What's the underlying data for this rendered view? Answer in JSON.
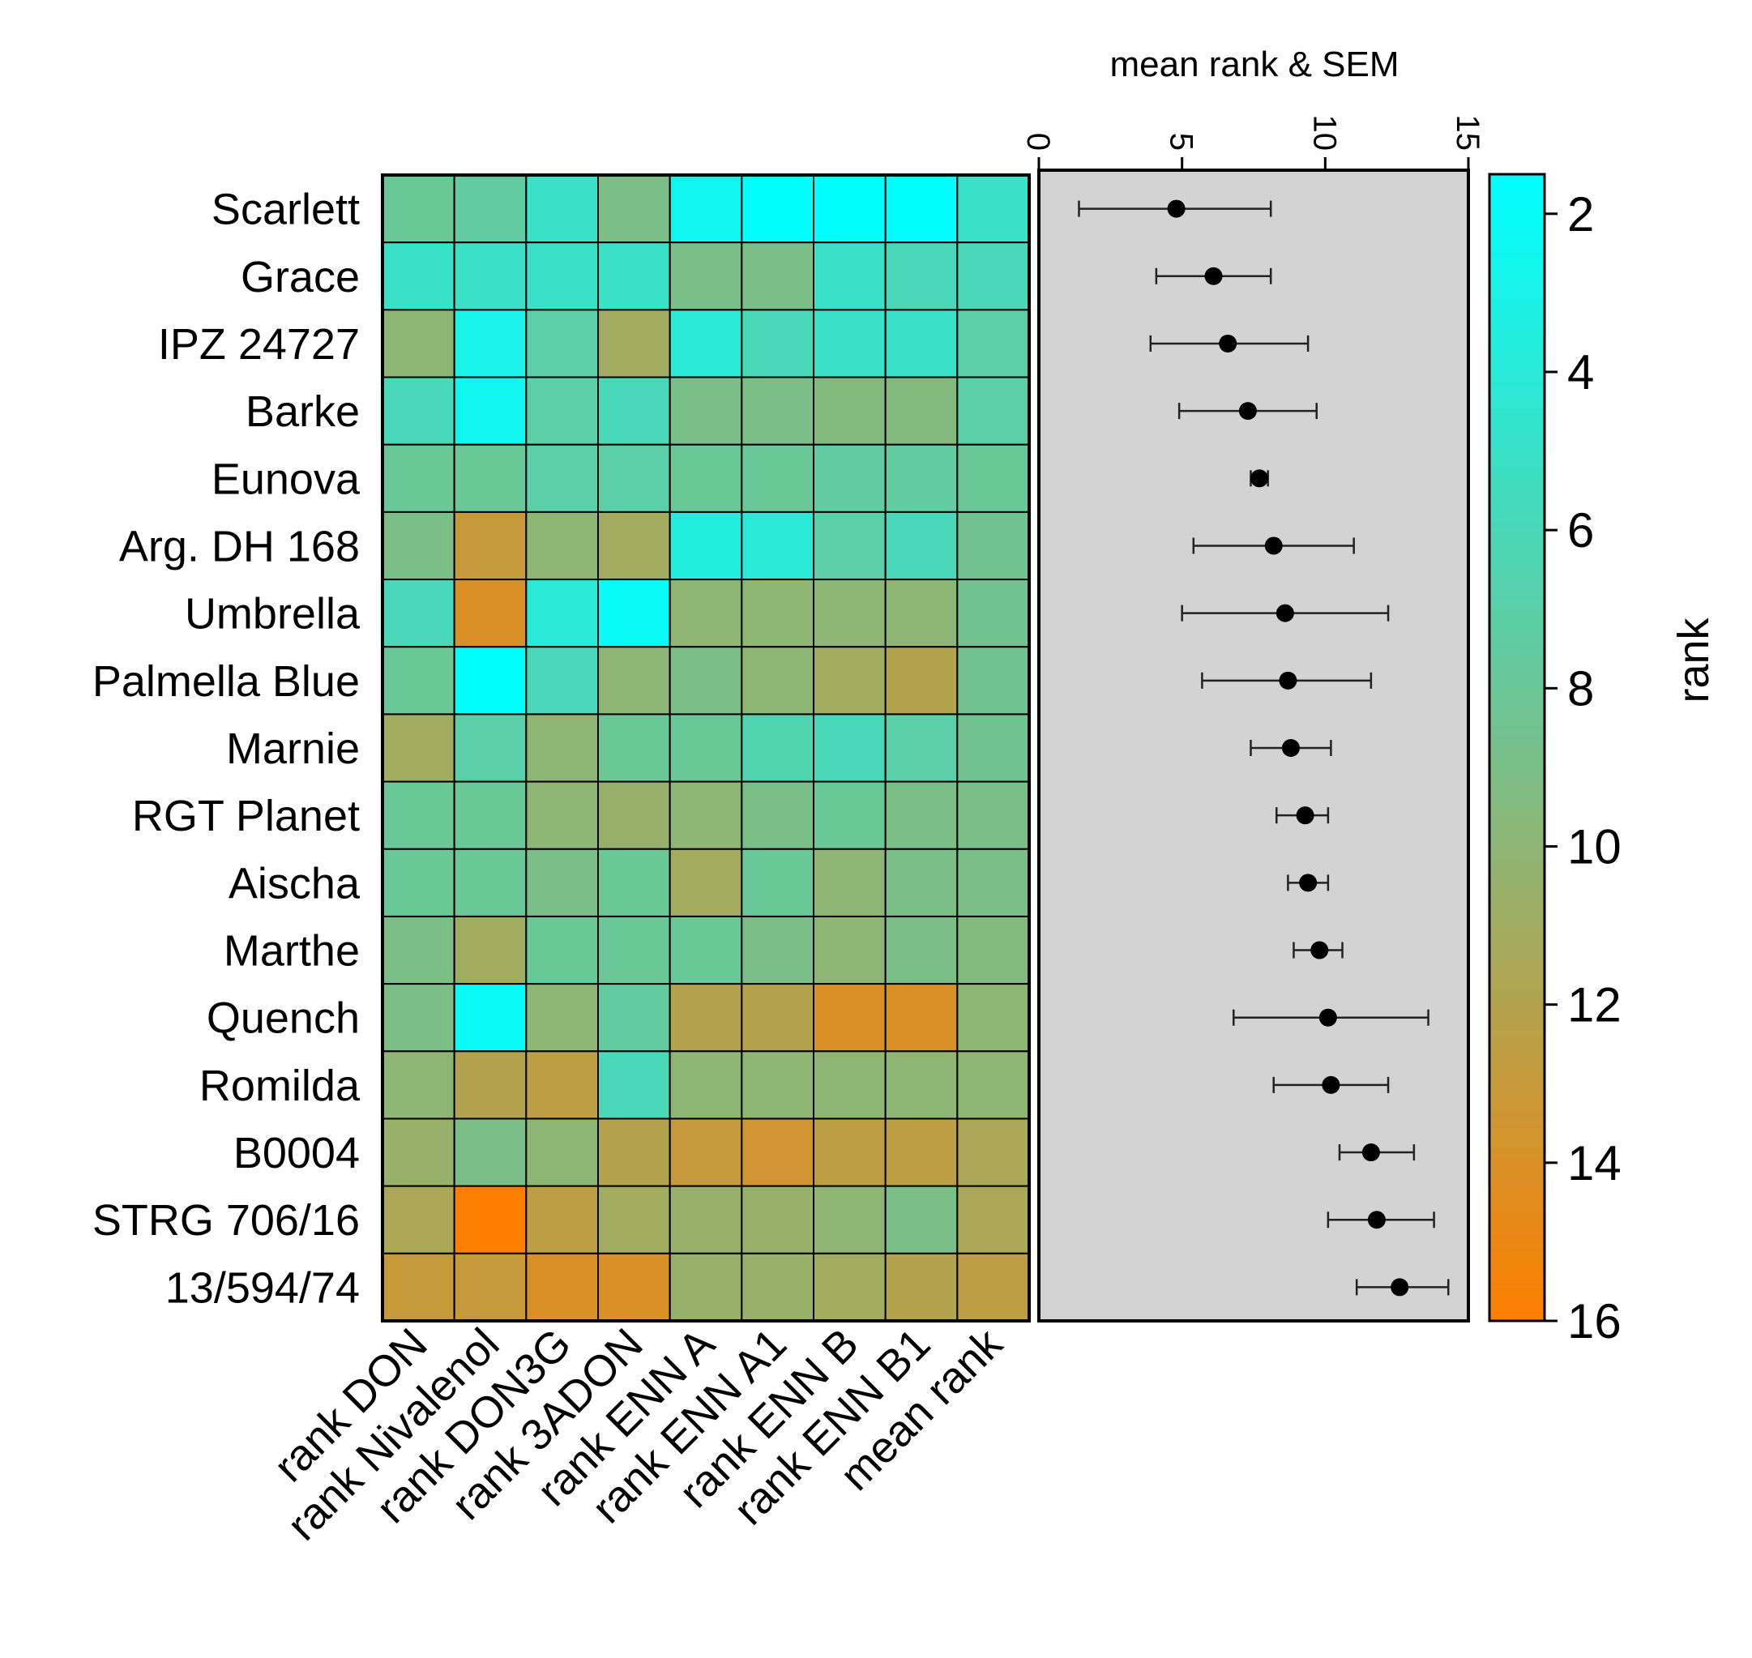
{
  "chart_data": {
    "type": "heatmap",
    "rows": [
      "Scarlett",
      "Grace",
      "IPZ 24727",
      "Barke",
      "Eunova",
      "Arg. DH 168",
      "Umbrella",
      "Palmella Blue",
      "Marnie",
      "RGT Planet",
      "Aischa",
      "Marthe",
      "Quench",
      "Romilda",
      "B0004",
      "STRG 706/16",
      "13/594/74"
    ],
    "columns": [
      "rank DON",
      "rank Nivalenol",
      "rank DON3G",
      "rank 3ADON",
      "rank ENN A",
      "rank ENN A1",
      "rank ENN B",
      "rank ENN B1",
      "mean rank"
    ],
    "values": [
      [
        8,
        7.5,
        5,
        9,
        2.5,
        1.5,
        1,
        1,
        5
      ],
      [
        5,
        5,
        5,
        5,
        9,
        9,
        5,
        6,
        6
      ],
      [
        10,
        3,
        7,
        11,
        4,
        6,
        5,
        5,
        7
      ],
      [
        6,
        2.5,
        7,
        6,
        9,
        9,
        9.5,
        9.5,
        7
      ],
      [
        8,
        8,
        7,
        7,
        8,
        8,
        7.5,
        7.5,
        8
      ],
      [
        9,
        13,
        10,
        11,
        3.5,
        4,
        7,
        6,
        8.5
      ],
      [
        6,
        14,
        4,
        2,
        10,
        10,
        10,
        10,
        8.5
      ],
      [
        8,
        1.5,
        6,
        10,
        9,
        10,
        11,
        12,
        8.5
      ],
      [
        11,
        7,
        10,
        8,
        8,
        6.5,
        6,
        7,
        8.5
      ],
      [
        8,
        8,
        10,
        10.5,
        10,
        9,
        8,
        9,
        9
      ],
      [
        8,
        8,
        9,
        8,
        11,
        8,
        10,
        9,
        9
      ],
      [
        9,
        11,
        8,
        8,
        8,
        9,
        10,
        9,
        9.5
      ],
      [
        9,
        2,
        10,
        7.5,
        12,
        12,
        14,
        14,
        10
      ],
      [
        10,
        12,
        12.5,
        6,
        10,
        10,
        10,
        10,
        10
      ],
      [
        10.5,
        9,
        10,
        12,
        13,
        13.5,
        12.5,
        12.5,
        11.5
      ],
      [
        11.5,
        16,
        12.5,
        11,
        10.5,
        10.5,
        10,
        9,
        11.5
      ],
      [
        13,
        13,
        14,
        14,
        10.5,
        10.5,
        11,
        12,
        12.5
      ]
    ],
    "colorbar": {
      "title": "rank",
      "range": [
        16,
        1.5
      ],
      "ticks": [
        2,
        4,
        6,
        8,
        10,
        12,
        14,
        16
      ],
      "color_low_rank": "#00ffff",
      "color_mid_rank": "#76c08c",
      "color_high_rank": "#ff7f00"
    },
    "dot_plot": {
      "title": "mean rank & SEM",
      "xlim": [
        0,
        15
      ],
      "ticks": [
        0,
        5,
        10,
        15
      ],
      "background": "#d3d3d3",
      "mean": [
        4.8,
        6.1,
        6.6,
        7.3,
        7.7,
        8.2,
        8.6,
        8.7,
        8.8,
        9.3,
        9.4,
        9.8,
        10.1,
        10.2,
        11.6,
        11.8,
        12.6
      ],
      "sem_low": [
        1.4,
        4.1,
        3.9,
        4.9,
        7.4,
        5.4,
        5.0,
        5.7,
        7.4,
        8.3,
        8.7,
        8.9,
        6.8,
        8.2,
        10.5,
        10.1,
        11.1
      ],
      "sem_high": [
        8.1,
        8.1,
        9.4,
        9.7,
        8.0,
        11.0,
        12.2,
        11.6,
        10.2,
        10.1,
        10.1,
        10.6,
        13.6,
        12.2,
        13.1,
        13.8,
        14.3
      ]
    }
  }
}
